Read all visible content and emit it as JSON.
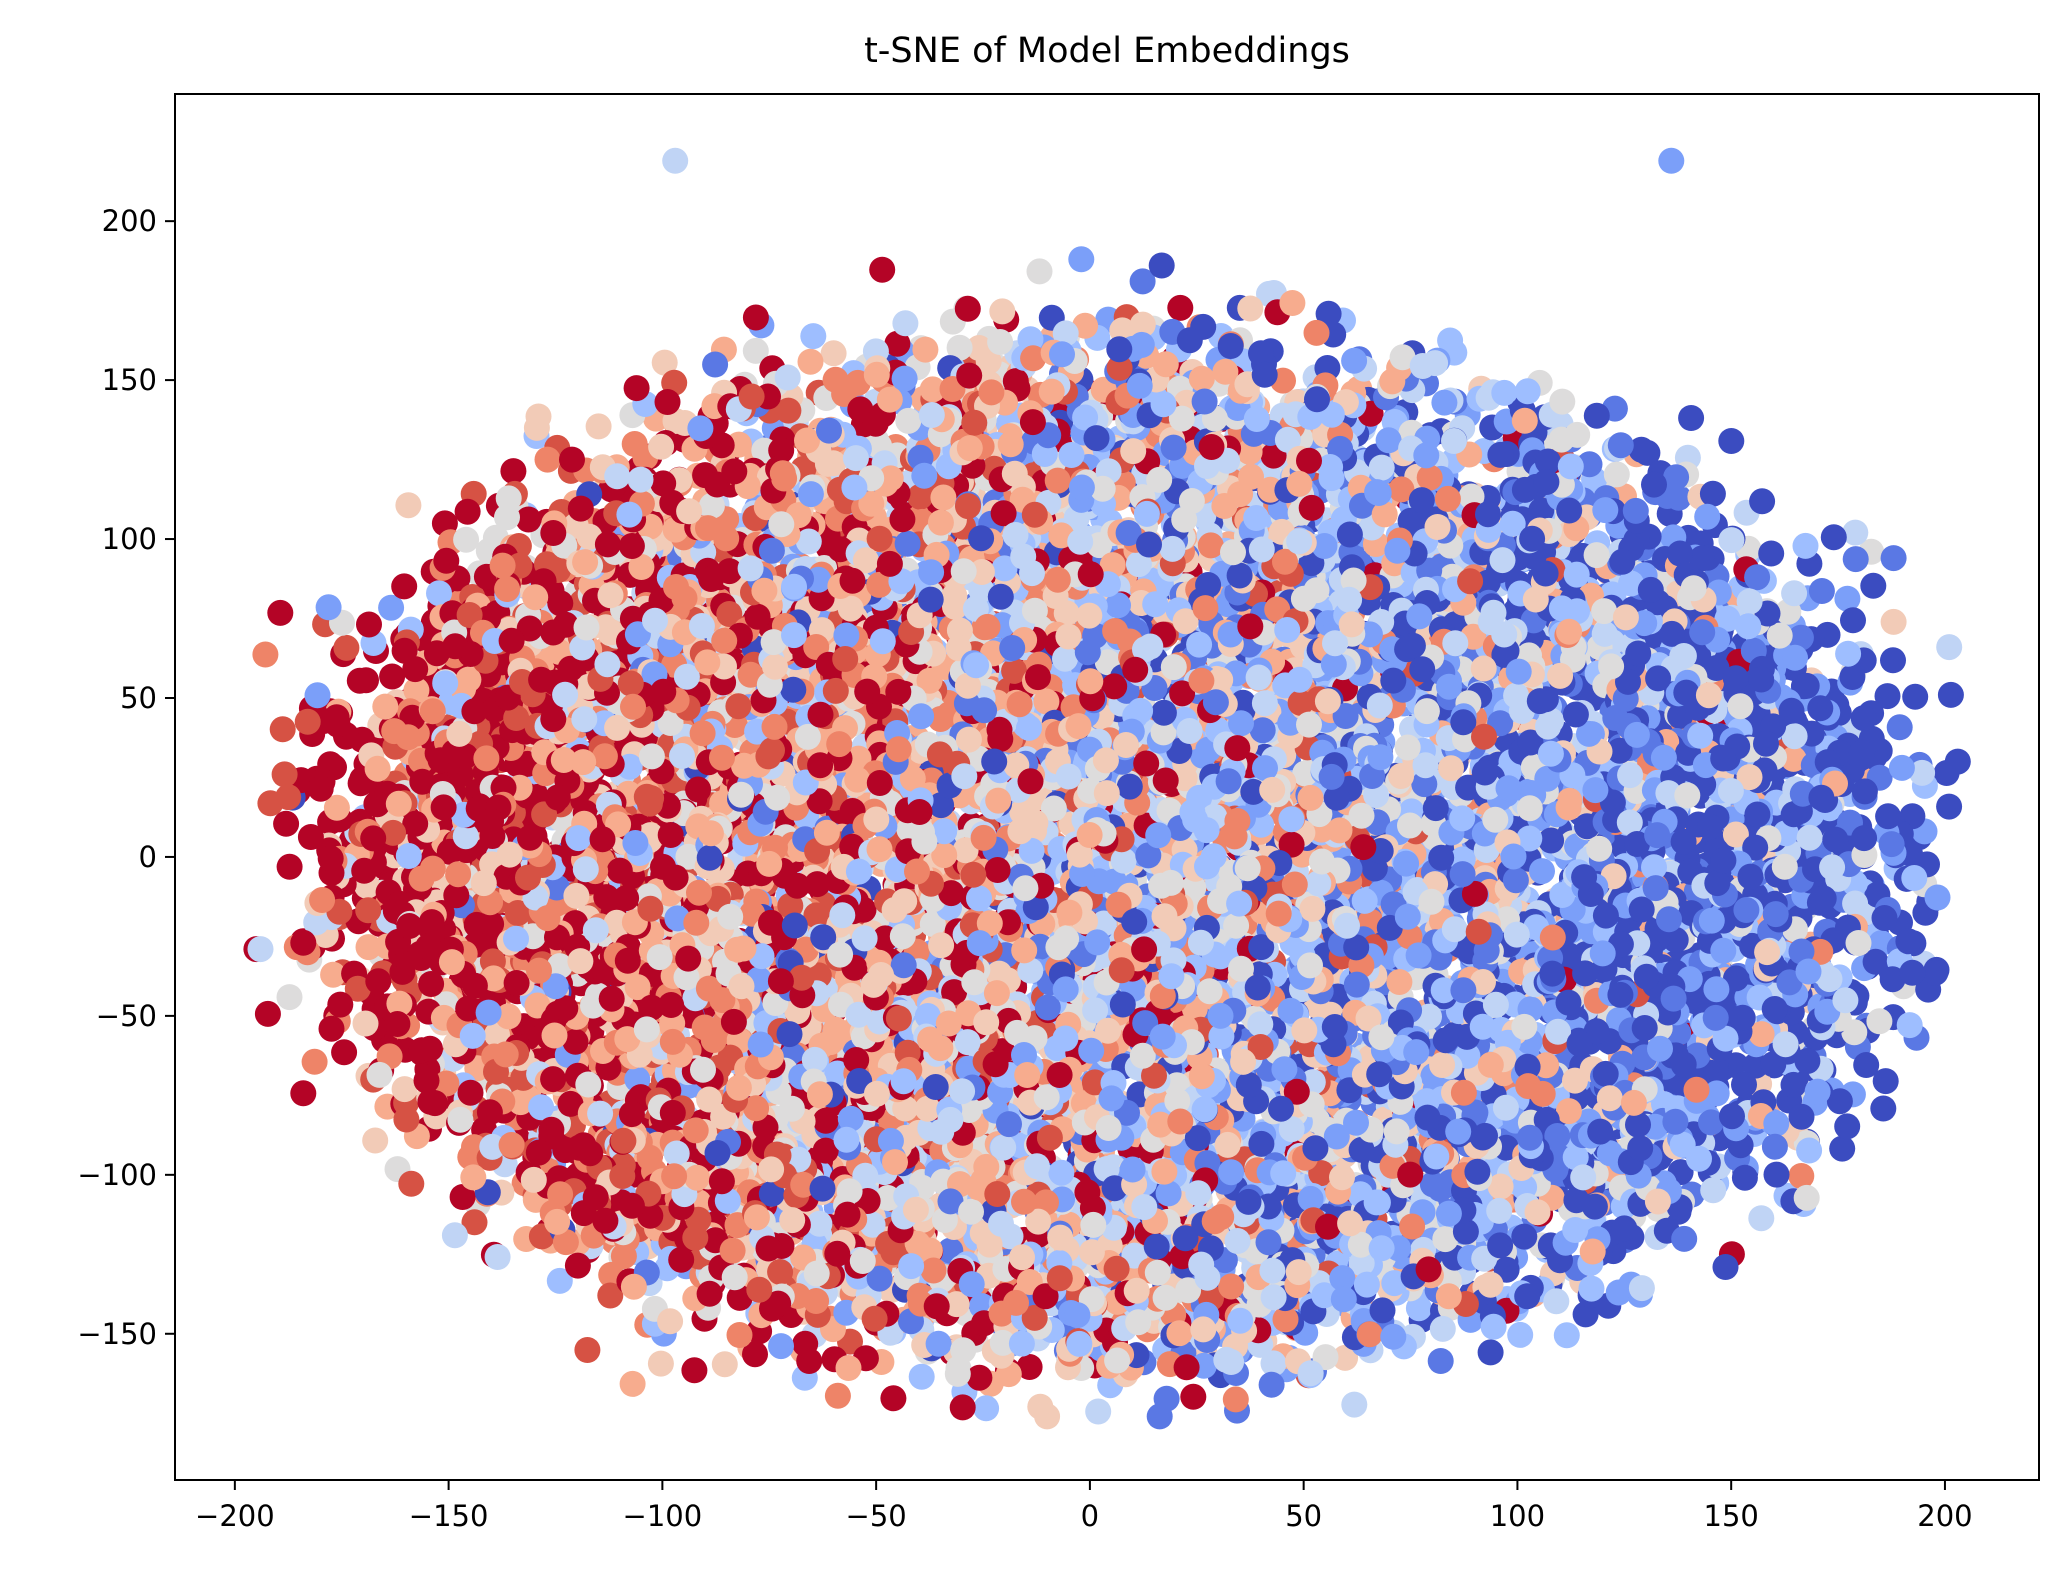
{
  "chart_data": {
    "type": "scatter",
    "title": "t-SNE of Model Embeddings",
    "xlabel": "",
    "ylabel": "",
    "xlim": [
      -214,
      222
    ],
    "ylim": [
      -196,
      240
    ],
    "xticks": [
      -200,
      -150,
      -100,
      -50,
      0,
      50,
      100,
      150,
      200
    ],
    "yticks": [
      -150,
      -100,
      -50,
      0,
      50,
      100,
      150,
      200
    ],
    "xtick_labels": [
      "−200",
      "−150",
      "−100",
      "−50",
      "0",
      "50",
      "100",
      "150",
      "200"
    ],
    "ytick_labels": [
      "−150",
      "−100",
      "−50",
      "0",
      "50",
      "100",
      "150",
      "200"
    ],
    "grid": false,
    "legend": "none",
    "colormap": "coolwarm",
    "palette": [
      "#3b4cc0",
      "#5a78e4",
      "#7b9ff9",
      "#9ebeff",
      "#c0d4f5",
      "#dddcdc",
      "#f2cbb7",
      "#f7ac8e",
      "#ee8468",
      "#d65244",
      "#b40426"
    ],
    "approx_point_count": 12000,
    "cloud": {
      "x_range": [
        -195,
        203
      ],
      "y_range": [
        -177,
        220
      ],
      "center": [
        5,
        0
      ],
      "color_trend": "red-dominant on left, blue-dominant on right"
    },
    "notable_points": [
      {
        "x": -97,
        "y": 219,
        "color": "#c0d4f5"
      },
      {
        "x": 136,
        "y": 219,
        "color": "#7b9ff9"
      },
      {
        "x": 188,
        "y": 94,
        "color": "#5a78e4"
      },
      {
        "x": 203,
        "y": 30,
        "color": "#3b4cc0"
      },
      {
        "x": 201,
        "y": 66,
        "color": "#c0d4f5"
      },
      {
        "x": -194,
        "y": -29,
        "color": "#c0d4f5"
      },
      {
        "x": -183,
        "y": -30,
        "color": "#ee8468"
      },
      {
        "x": -184,
        "y": -27,
        "color": "#b40426"
      },
      {
        "x": -2,
        "y": 188,
        "color": "#7b9ff9"
      },
      {
        "x": -10,
        "y": -176,
        "color": "#f2cbb7"
      }
    ]
  }
}
